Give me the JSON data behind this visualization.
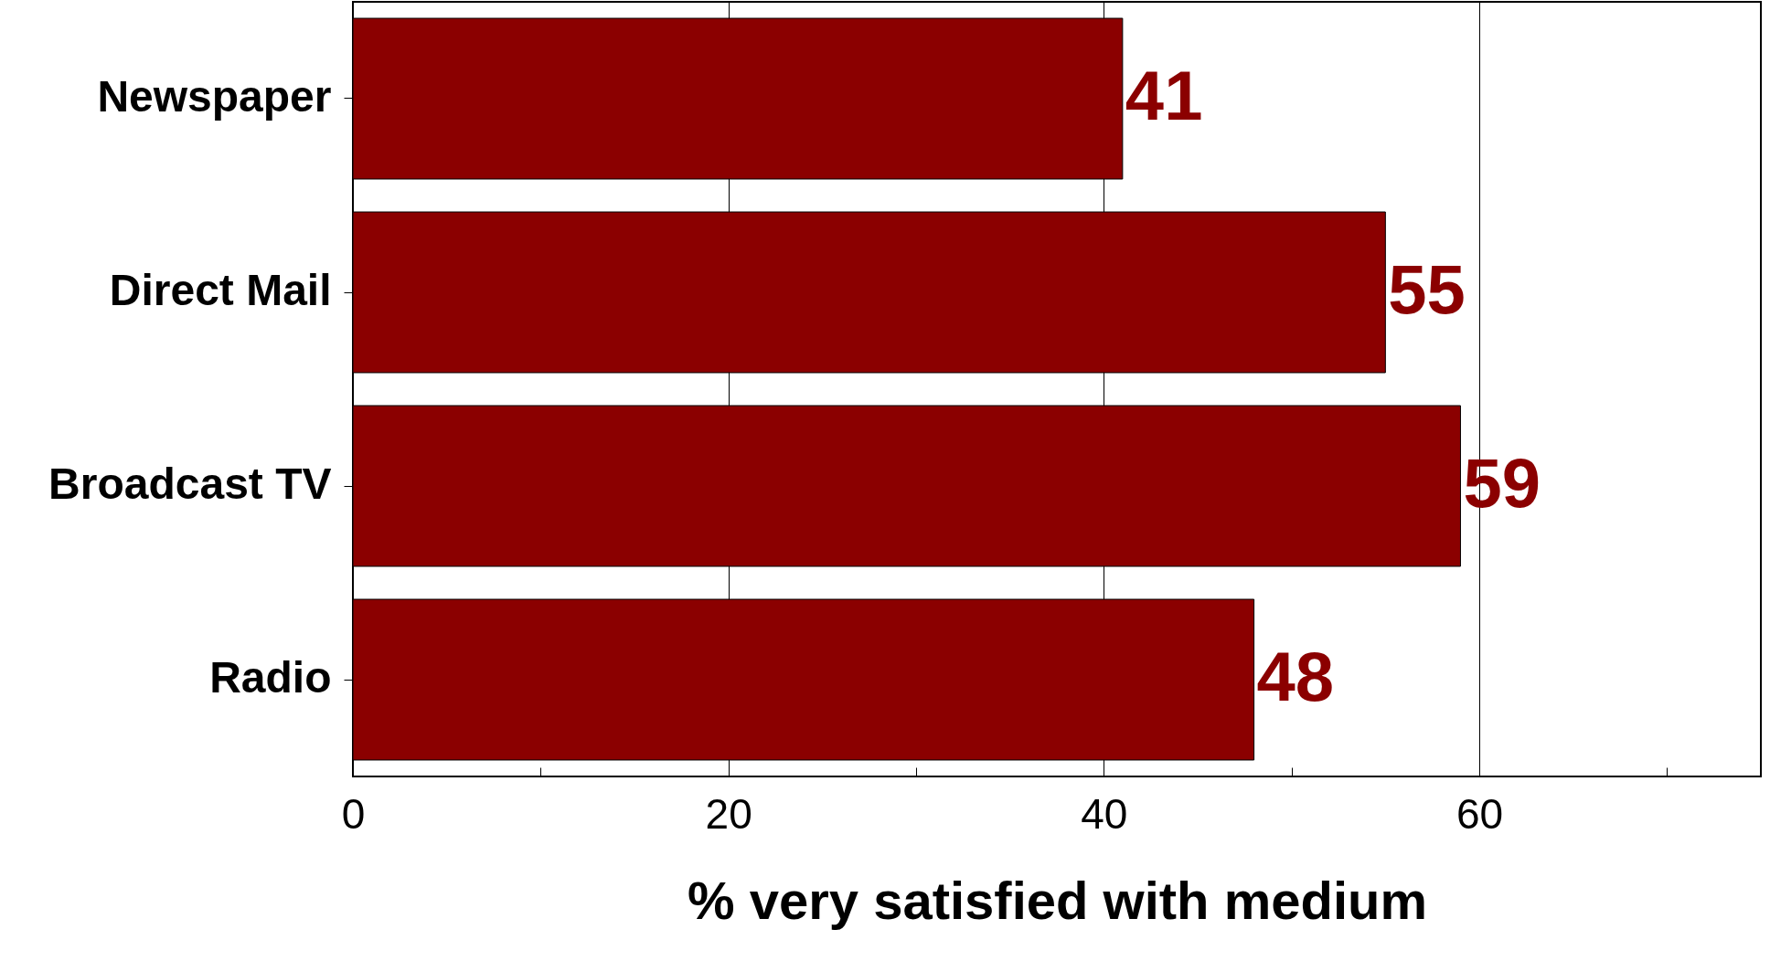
{
  "chart_data": {
    "type": "bar",
    "orientation": "horizontal",
    "xlabel": "% very satisfied with medium",
    "categories": [
      "Newspaper",
      "Direct Mail",
      "Broadcast TV",
      "Radio"
    ],
    "values": [
      41,
      55,
      59,
      48
    ],
    "color": "#8b0000",
    "data_labels": true,
    "xlim": [
      0,
      75
    ],
    "xticks": [
      0,
      {
        "value": 10,
        "label": null
      },
      20,
      {
        "value": 30,
        "label": null
      },
      40,
      {
        "value": 50,
        "label": null
      },
      60,
      {
        "value": 70,
        "label": null
      }
    ],
    "grid": "x"
  }
}
